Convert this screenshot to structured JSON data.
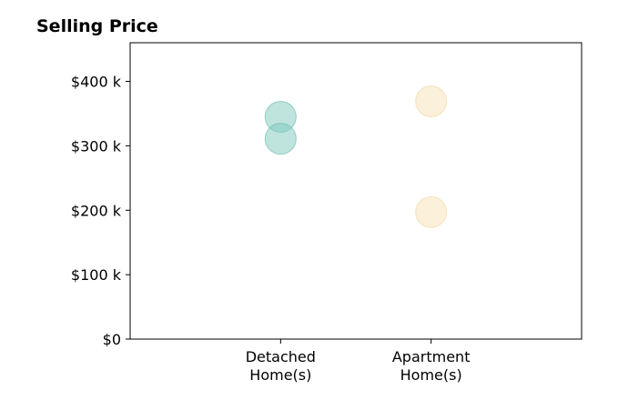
{
  "chart_data": {
    "type": "scatter",
    "title": "Selling Price",
    "xlabel": "",
    "ylabel": "",
    "categories": [
      [
        "Detached",
        "Home(s)"
      ],
      [
        "Apartment",
        "Home(s)"
      ]
    ],
    "xlim": [
      -1,
      2
    ],
    "ylim": [
      0,
      460000
    ],
    "yticks": [
      {
        "value": 0,
        "label": "$0"
      },
      {
        "value": 100000,
        "label": "$100 k"
      },
      {
        "value": 200000,
        "label": "$200 k"
      },
      {
        "value": 300000,
        "label": "$300 k"
      },
      {
        "value": 400000,
        "label": "$400 k"
      }
    ],
    "grid": false,
    "series": [
      {
        "category": 0,
        "values": [
          345000,
          311000
        ],
        "color": "#7fc9bd",
        "edge": "#5fb5a8"
      },
      {
        "category": 1,
        "values": [
          369000,
          197000
        ],
        "color": "#f7e2b5",
        "edge": "#f0d69c"
      }
    ]
  }
}
